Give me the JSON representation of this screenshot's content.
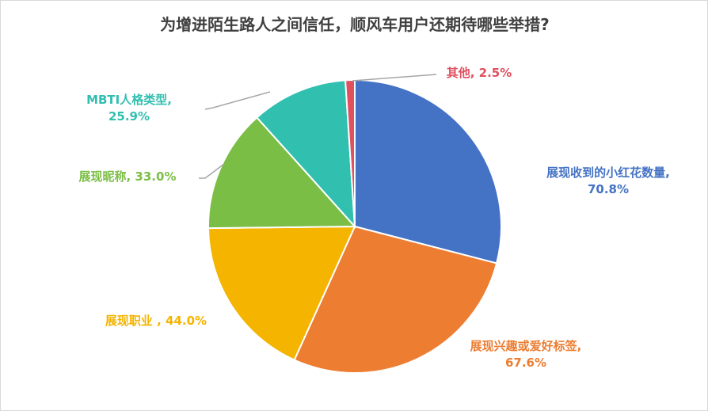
{
  "chart_data": {
    "type": "pie",
    "title": "为增进陌生路人之间信任，顺风车用户还期待哪些举措?",
    "slices": [
      {
        "label": "展现收到的小红花数量",
        "value": 70.8,
        "display": "70.8%",
        "color": "#4472C4"
      },
      {
        "label": "展现兴趣或爱好标签",
        "value": 67.6,
        "display": "67.6%",
        "color": "#ED7D31"
      },
      {
        "label": "展现职业",
        "value": 44.0,
        "display": "44.0%",
        "color": "#F4B400"
      },
      {
        "label": "展现昵称",
        "value": 33.0,
        "display": "33.0%",
        "color": "#7BBE45"
      },
      {
        "label": "MBTI人格类型",
        "value": 25.9,
        "display": "25.9%",
        "color": "#31BFB0"
      },
      {
        "label": "其他",
        "value": 2.5,
        "display": "2.5%",
        "color": "#E0505E"
      }
    ],
    "legend": "none",
    "data_labels": "outside"
  }
}
